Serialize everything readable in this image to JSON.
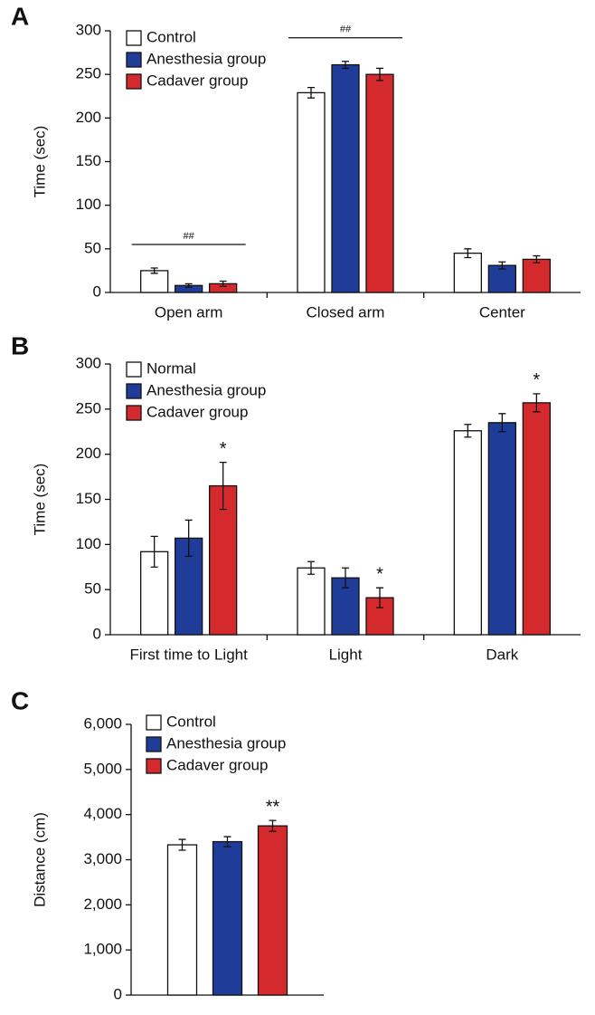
{
  "chart_data": [
    {
      "type": "bar",
      "title": "A",
      "y_label": "Time (sec)",
      "categories": [
        "Open arm",
        "Closed arm",
        "Center"
      ],
      "series": [
        {
          "name": "Control",
          "color": "#ffffff",
          "values": [
            25,
            229,
            45
          ],
          "errors": [
            3,
            6,
            5
          ]
        },
        {
          "name": "Anesthesia group",
          "color": "#1f3c99",
          "values": [
            8,
            261,
            31
          ],
          "errors": [
            2,
            4,
            4
          ]
        },
        {
          "name": "Cadaver group",
          "color": "#d42a2e",
          "values": [
            10,
            250,
            38
          ],
          "errors": [
            3,
            7,
            4
          ]
        }
      ],
      "ylim": [
        0,
        300
      ],
      "yticks": [
        0,
        50,
        100,
        150,
        200,
        250,
        300
      ],
      "legend": "upper left",
      "annotations": [
        {
          "text": "##",
          "category": "Open arm"
        },
        {
          "text": "##",
          "category": "Closed arm"
        }
      ]
    },
    {
      "type": "bar",
      "title": "B",
      "y_label": "Time (sec)",
      "categories": [
        "First time to Light",
        "Light",
        "Dark"
      ],
      "series": [
        {
          "name": "Normal",
          "color": "#ffffff",
          "values": [
            92,
            74,
            226
          ],
          "errors": [
            17,
            7,
            7
          ]
        },
        {
          "name": "Anesthesia group",
          "color": "#1f3c99",
          "values": [
            107,
            63,
            235
          ],
          "errors": [
            20,
            11,
            10
          ]
        },
        {
          "name": "Cadaver group",
          "color": "#d42a2e",
          "values": [
            165,
            41,
            257
          ],
          "errors": [
            26,
            11,
            10
          ]
        }
      ],
      "ylim": [
        0,
        300
      ],
      "yticks": [
        0,
        50,
        100,
        150,
        200,
        250,
        300
      ],
      "legend": "upper left",
      "annotations": [
        {
          "text": "*",
          "category": "First time to Light",
          "series": "Cadaver group"
        },
        {
          "text": "*",
          "category": "Light",
          "series": "Cadaver group"
        },
        {
          "text": "*",
          "category": "Dark",
          "series": "Cadaver group"
        }
      ]
    },
    {
      "type": "bar",
      "title": "C",
      "y_label": "Distance (cm)",
      "categories": [
        null
      ],
      "series": [
        {
          "name": "Control",
          "color": "#ffffff",
          "values": [
            3330
          ],
          "errors": [
            120
          ]
        },
        {
          "name": "Anesthesia group",
          "color": "#1f3c99",
          "values": [
            3400
          ],
          "errors": [
            110
          ]
        },
        {
          "name": "Cadaver group",
          "color": "#d42a2e",
          "values": [
            3750
          ],
          "errors": [
            120
          ]
        }
      ],
      "ylim": [
        0,
        6000
      ],
      "yticks": [
        0,
        {
          "value": 1000,
          "label": "1,000"
        },
        {
          "value": 2000,
          "label": "2,000"
        },
        {
          "value": 3000,
          "label": "3,000"
        },
        {
          "value": 4000,
          "label": "4,000"
        },
        {
          "value": 5000,
          "label": "5,000"
        },
        {
          "value": 6000,
          "label": "6,000"
        }
      ],
      "legend": "upper left",
      "annotations": [
        {
          "text": "**",
          "series": "Cadaver group"
        }
      ]
    }
  ]
}
